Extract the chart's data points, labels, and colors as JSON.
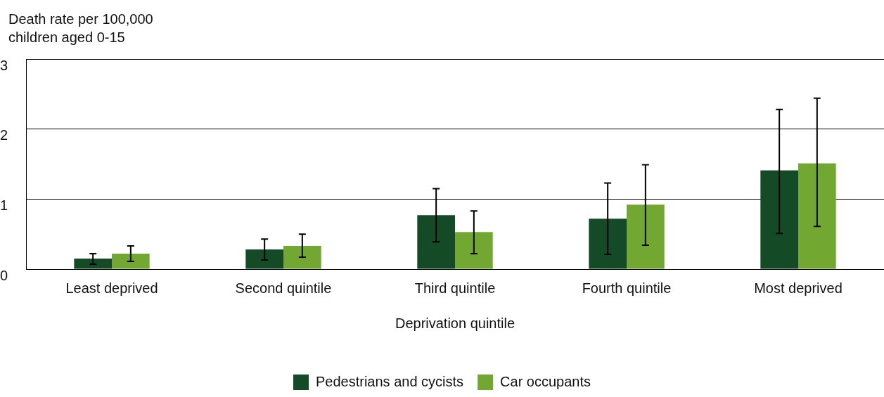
{
  "chart_data": {
    "type": "bar",
    "ylabel": "Death rate per 100,000 children aged 0-15",
    "xlabel": "Deprivation quintile",
    "categories": [
      "Least deprived",
      "Second quintile",
      "Third quintile",
      "Fourth quintile",
      "Most deprived"
    ],
    "series": [
      {
        "name": "Pedestrians and cycists",
        "color": "#154a26",
        "values": [
          0.15,
          0.28,
          0.77,
          0.72,
          1.41
        ],
        "errors": [
          [
            0.07,
            0.22
          ],
          [
            0.13,
            0.43
          ],
          [
            0.39,
            1.15
          ],
          [
            0.21,
            1.23
          ],
          [
            0.51,
            2.28
          ]
        ]
      },
      {
        "name": "Car occupants",
        "color": "#72a832",
        "values": [
          0.22,
          0.33,
          0.53,
          0.92,
          1.51
        ],
        "errors": [
          [
            0.11,
            0.33
          ],
          [
            0.17,
            0.5
          ],
          [
            0.22,
            0.83
          ],
          [
            0.34,
            1.49
          ],
          [
            0.61,
            2.44
          ]
        ]
      }
    ],
    "ylim": [
      0,
      3
    ],
    "yticks": [
      0,
      1,
      2,
      3
    ],
    "grid": "y",
    "legend": "bottom"
  }
}
